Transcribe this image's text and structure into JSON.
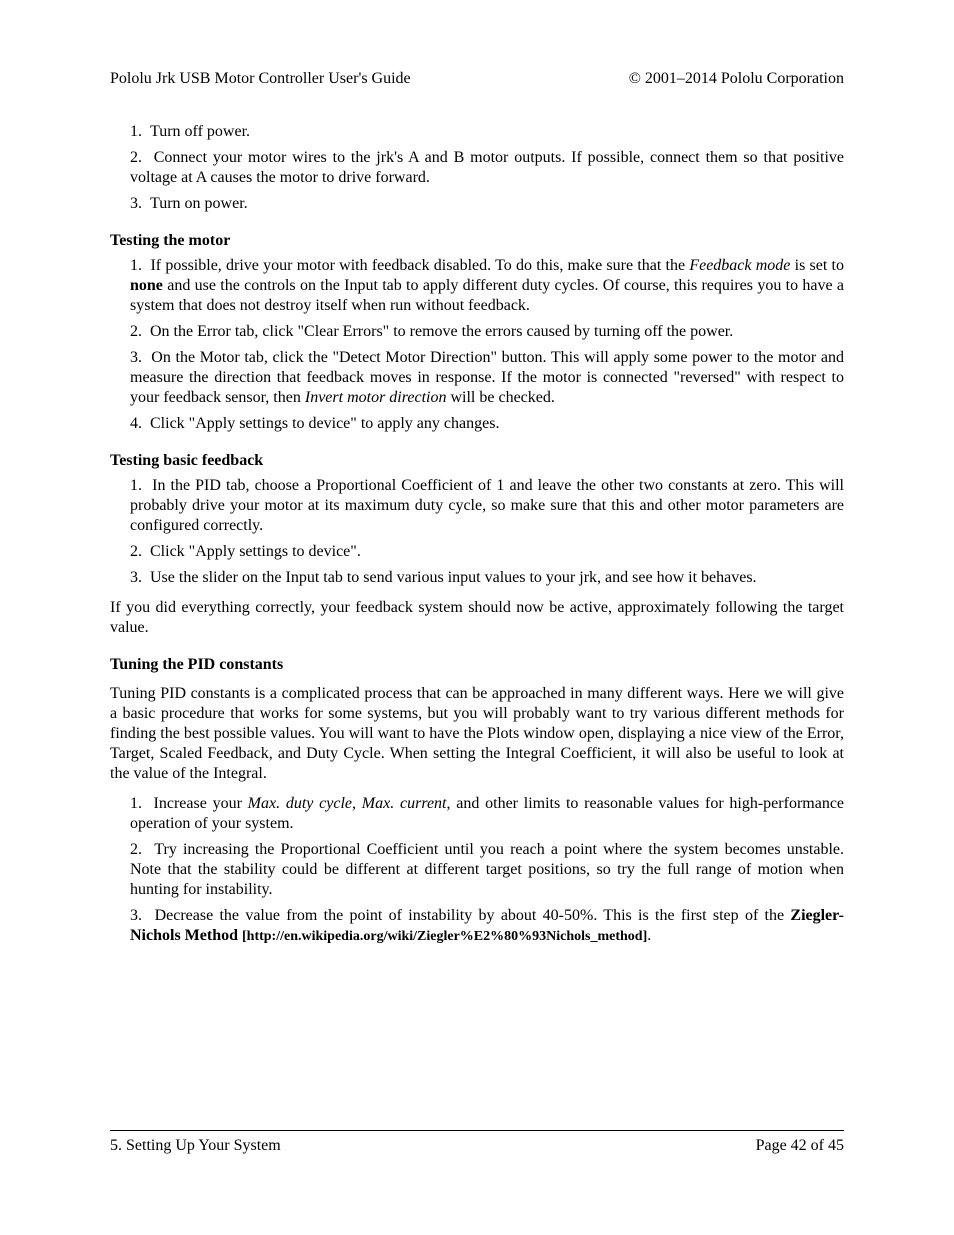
{
  "header": {
    "left": "Pololu Jrk USB Motor Controller User's Guide",
    "right": "© 2001–2014 Pololu Corporation"
  },
  "list1": {
    "i1": {
      "num": "1.",
      "text": "Turn off power."
    },
    "i2": {
      "num": "2.",
      "text": "Connect your motor wires to the jrk's A and B motor outputs. If possible, connect them so that positive voltage at A causes the motor to drive forward."
    },
    "i3": {
      "num": "3.",
      "text": "Turn on power."
    }
  },
  "heading1": "Testing the motor",
  "list2": {
    "i1": {
      "num": "1.",
      "pre": "If possible, drive your motor with feedback disabled. To do this, make sure that the ",
      "em1": "Feedback mode",
      "mid": " is set to ",
      "bold1": "none",
      "post": " and use the controls on the Input tab to apply different duty cycles. Of course, this requires you to have a system that does not destroy itself when run without feedback."
    },
    "i2": {
      "num": "2.",
      "text": "On the Error tab, click \"Clear Errors\" to remove the errors caused by turning off the power."
    },
    "i3": {
      "num": "3.",
      "pre": "On the Motor tab, click the \"Detect Motor Direction\" button. This will apply some power to the motor and measure the direction that feedback moves in response. If the motor is connected \"reversed\" with respect to your feedback sensor, then ",
      "em1": "Invert motor direction",
      "post": " will be checked."
    },
    "i4": {
      "num": "4.",
      "text": "Click \"Apply settings to device\" to apply any changes."
    }
  },
  "heading2": "Testing basic feedback",
  "list3": {
    "i1": {
      "num": "1.",
      "text": "In the PID tab, choose a Proportional Coefficient of 1 and leave the other two constants at zero. This will probably drive your motor at its maximum duty cycle, so make sure that this and other motor parameters are configured correctly."
    },
    "i2": {
      "num": "2.",
      "text": "Click \"Apply settings to device\"."
    },
    "i3": {
      "num": "3.",
      "text": "Use the slider on the Input tab to send various input values to your jrk, and see how it behaves."
    }
  },
  "para1": "If you did everything correctly, your feedback system should now be active, approximately following the target value.",
  "heading3": "Tuning the PID constants",
  "para2": "Tuning PID constants is a complicated process that can be approached in many different ways. Here we will give a basic procedure that works for some systems, but you will probably want to try various different methods for finding the best possible values. You will want to have the Plots window open, displaying a nice view of the Error, Target, Scaled Feedback, and Duty Cycle. When setting the Integral Coefficient, it will also be useful to look at the value of the Integral.",
  "list4": {
    "i1": {
      "num": "1.",
      "pre": "Increase your ",
      "em1": "Max. duty cycle",
      "mid1": ", ",
      "em2": "Max. current",
      "post": ", and other limits to reasonable values for high-performance operation of your system."
    },
    "i2": {
      "num": "2.",
      "text": "Try increasing the Proportional Coefficient until you reach a point where the system becomes unstable. Note that the stability could be different at different target positions, so try the full range of motion when hunting for instability."
    },
    "i3": {
      "num": "3.",
      "pre": "Decrease the value from the point of instability by about 40-50%. This is the first step of the ",
      "bold1": "Ziegler-Nichols Method ",
      "url": "[http://en.wikipedia.org/wiki/Ziegler%E2%80%93Nichols_method]",
      "post": "."
    }
  },
  "footer": {
    "left": "5. Setting Up Your System",
    "right": "Page 42 of 45"
  }
}
